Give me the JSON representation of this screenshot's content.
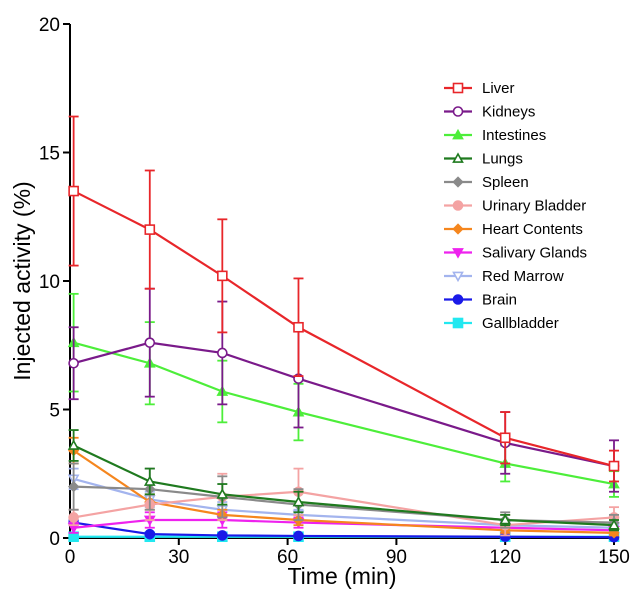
{
  "chart_data": {
    "type": "line",
    "xlabel": "Time (min)",
    "ylabel": "Injected activity (%)",
    "xlim": [
      0,
      150
    ],
    "ylim": [
      0,
      20
    ],
    "xticks": [
      0,
      30,
      60,
      90,
      120,
      150
    ],
    "yticks": [
      0,
      5,
      10,
      15,
      20
    ],
    "x": [
      1,
      22,
      42,
      63,
      120,
      150
    ],
    "grid": false,
    "legend_position": "right",
    "series": [
      {
        "name": "Liver",
        "color": "#e8262a",
        "marker": "square-open",
        "values": [
          13.5,
          12.0,
          10.2,
          8.2,
          3.9,
          2.8
        ],
        "errors": [
          2.9,
          2.3,
          2.2,
          1.9,
          1.0,
          0.6
        ]
      },
      {
        "name": "Kidneys",
        "color": "#7a1a8a",
        "marker": "circle-open",
        "values": [
          6.8,
          7.6,
          7.2,
          6.2,
          3.7,
          2.8
        ],
        "errors": [
          1.4,
          2.1,
          2.0,
          1.9,
          1.2,
          1.0
        ]
      },
      {
        "name": "Intestines",
        "color": "#4dee3a",
        "marker": "triangle-filled",
        "values": [
          7.6,
          6.8,
          5.7,
          4.9,
          2.9,
          2.1
        ],
        "errors": [
          1.9,
          1.6,
          1.2,
          1.1,
          0.7,
          0.5
        ]
      },
      {
        "name": "Lungs",
        "color": "#1f7a1f",
        "marker": "triangle-open",
        "values": [
          3.6,
          2.2,
          1.7,
          1.4,
          0.7,
          0.5
        ],
        "errors": [
          0.6,
          0.5,
          0.4,
          0.4,
          0.2,
          0.2
        ]
      },
      {
        "name": "Spleen",
        "color": "#8a8a8a",
        "marker": "diamond-filled",
        "values": [
          2.0,
          1.9,
          1.6,
          1.3,
          0.7,
          0.6
        ],
        "errors": [
          0.9,
          0.8,
          0.8,
          0.6,
          0.3,
          0.3
        ]
      },
      {
        "name": "Urinary Bladder",
        "color": "#f4a3a3",
        "marker": "circle-filled",
        "values": [
          0.8,
          1.3,
          1.6,
          1.8,
          0.5,
          0.8
        ],
        "errors": [
          0.3,
          0.6,
          0.9,
          0.9,
          0.4,
          0.4
        ]
      },
      {
        "name": "Heart Contents",
        "color": "#f5861e",
        "marker": "diamond-filled",
        "values": [
          3.4,
          1.4,
          0.9,
          0.7,
          0.3,
          0.2
        ],
        "errors": [
          0.5,
          0.3,
          0.2,
          0.2,
          0.1,
          0.1
        ]
      },
      {
        "name": "Salivary Glands",
        "color": "#ee22ee",
        "marker": "triangle-down-filled",
        "values": [
          0.4,
          0.7,
          0.7,
          0.6,
          0.4,
          0.3
        ],
        "errors": [
          0.2,
          0.3,
          0.3,
          0.2,
          0.2,
          0.1
        ]
      },
      {
        "name": "Red Marrow",
        "color": "#a3b4ee",
        "marker": "triangle-down-open",
        "values": [
          2.3,
          1.5,
          1.1,
          0.9,
          0.5,
          0.4
        ],
        "errors": [
          0.4,
          0.3,
          0.3,
          0.2,
          0.2,
          0.1
        ]
      },
      {
        "name": "Brain",
        "color": "#1a1ae8",
        "marker": "circle-filled",
        "values": [
          0.6,
          0.15,
          0.1,
          0.08,
          0.05,
          0.03
        ],
        "errors": [
          0.1,
          0.05,
          0.03,
          0.02,
          0.02,
          0.01
        ]
      },
      {
        "name": "Gallbladder",
        "color": "#22e8f0",
        "marker": "square-filled",
        "values": [
          0.05,
          0.05,
          0.05,
          0.05,
          0.05,
          0.05
        ],
        "errors": [
          0.02,
          0.02,
          0.02,
          0.02,
          0.02,
          0.02
        ]
      }
    ]
  }
}
